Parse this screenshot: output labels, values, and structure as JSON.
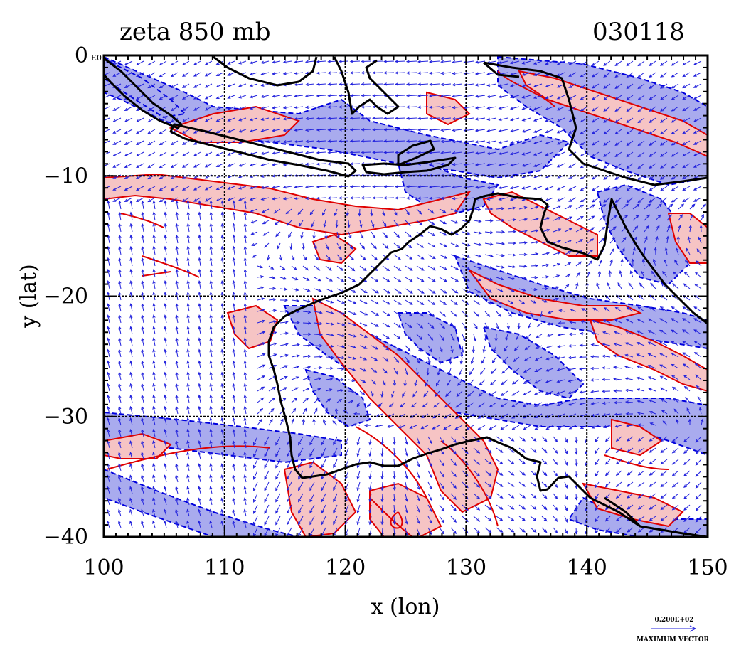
{
  "title": "zeta 850 mb",
  "date_code": "030118",
  "corner_tick": "0",
  "corner_tag": "E0",
  "x_axis": {
    "label": "x (lon)",
    "ticks": [
      "100",
      "110",
      "120",
      "130",
      "140",
      "150"
    ],
    "values": [
      100,
      110,
      120,
      130,
      140,
      150
    ],
    "range": [
      100,
      150
    ]
  },
  "y_axis": {
    "label": "y (lat)",
    "ticks": [
      "0",
      "−10",
      "−20",
      "−30",
      "−40"
    ],
    "values": [
      0,
      -10,
      -20,
      -30,
      -40
    ],
    "range": [
      -40,
      0
    ]
  },
  "vector_key": {
    "value": "0.200E+02",
    "label": "MAXIMUM VECTOR"
  },
  "colors": {
    "positive_fill": "#f6c4c4",
    "positive_contour": "#e00000",
    "negative_fill": "#a9abee",
    "negative_contour": "#0000dd",
    "vector": "#2222dd",
    "coastline": "#000000",
    "grid": "#000000"
  },
  "grid": "dashed"
}
